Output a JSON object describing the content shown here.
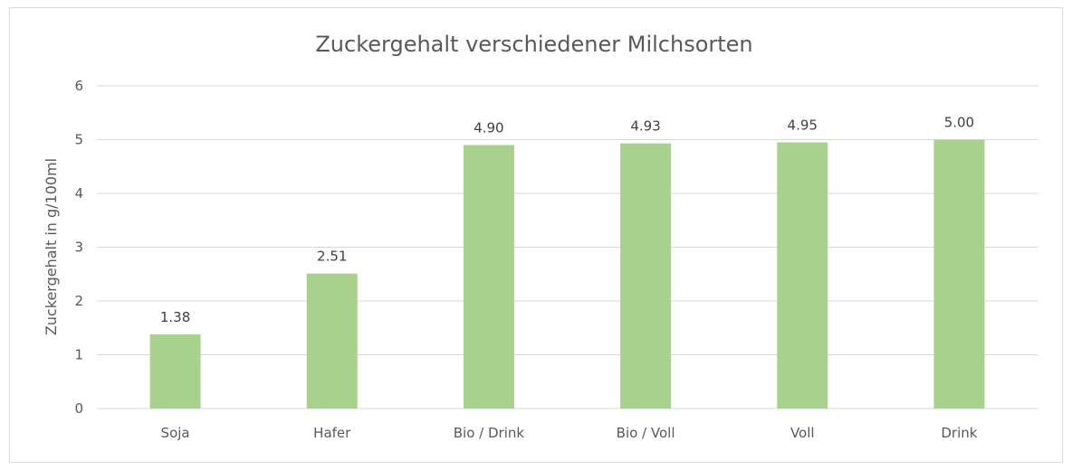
{
  "chart_data": {
    "type": "bar",
    "title": "Zuckergehalt verschiedener  Milchsorten",
    "xlabel": "",
    "ylabel": "Zuckergehalt in g/100ml",
    "categories": [
      "Soja",
      "Hafer",
      "Bio / Drink",
      "Bio / Voll",
      "Voll",
      "Drink"
    ],
    "values": [
      1.38,
      2.51,
      4.9,
      4.93,
      4.95,
      5.0
    ],
    "data_labels": [
      "1.38",
      "2.51",
      "4.90",
      "4.93",
      "4.95",
      "5.00"
    ],
    "ylim": [
      0,
      6
    ],
    "yticks": [
      "0",
      "1",
      "2",
      "3",
      "4",
      "5",
      "6"
    ],
    "grid": true,
    "legend": "none",
    "bar_color": "#a9d18e",
    "grid_color": "#d9d9d9",
    "text_color": "#595959"
  }
}
